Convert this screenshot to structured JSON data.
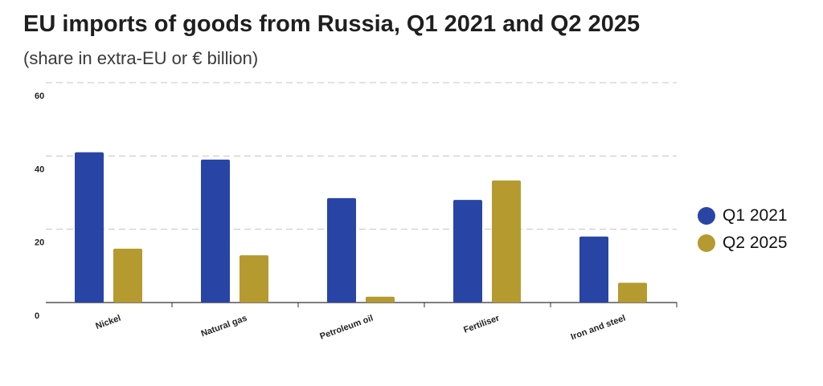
{
  "chart_data": {
    "type": "bar",
    "title": "EU imports of goods from Russia, Q1 2021 and Q2 2025",
    "subtitle": "(share in extra-EU or € billion)",
    "xlabel": "",
    "ylabel": "",
    "categories": [
      "Nickel",
      "Natural gas",
      "Petroleum oil",
      "Fertiliser",
      "Iron and steel"
    ],
    "series": [
      {
        "name": "Q1 2021",
        "color": "#2845a6",
        "values": [
          41,
          39,
          28.5,
          28,
          18
        ]
      },
      {
        "name": "Q2 2025",
        "color": "#b59a2f",
        "values": [
          14.7,
          12.9,
          1.6,
          33.3,
          5.4
        ]
      }
    ],
    "ylim": [
      0,
      60
    ],
    "yticks": [
      "0",
      "20",
      "40",
      "60"
    ],
    "grid": true,
    "legend_position": "right"
  }
}
